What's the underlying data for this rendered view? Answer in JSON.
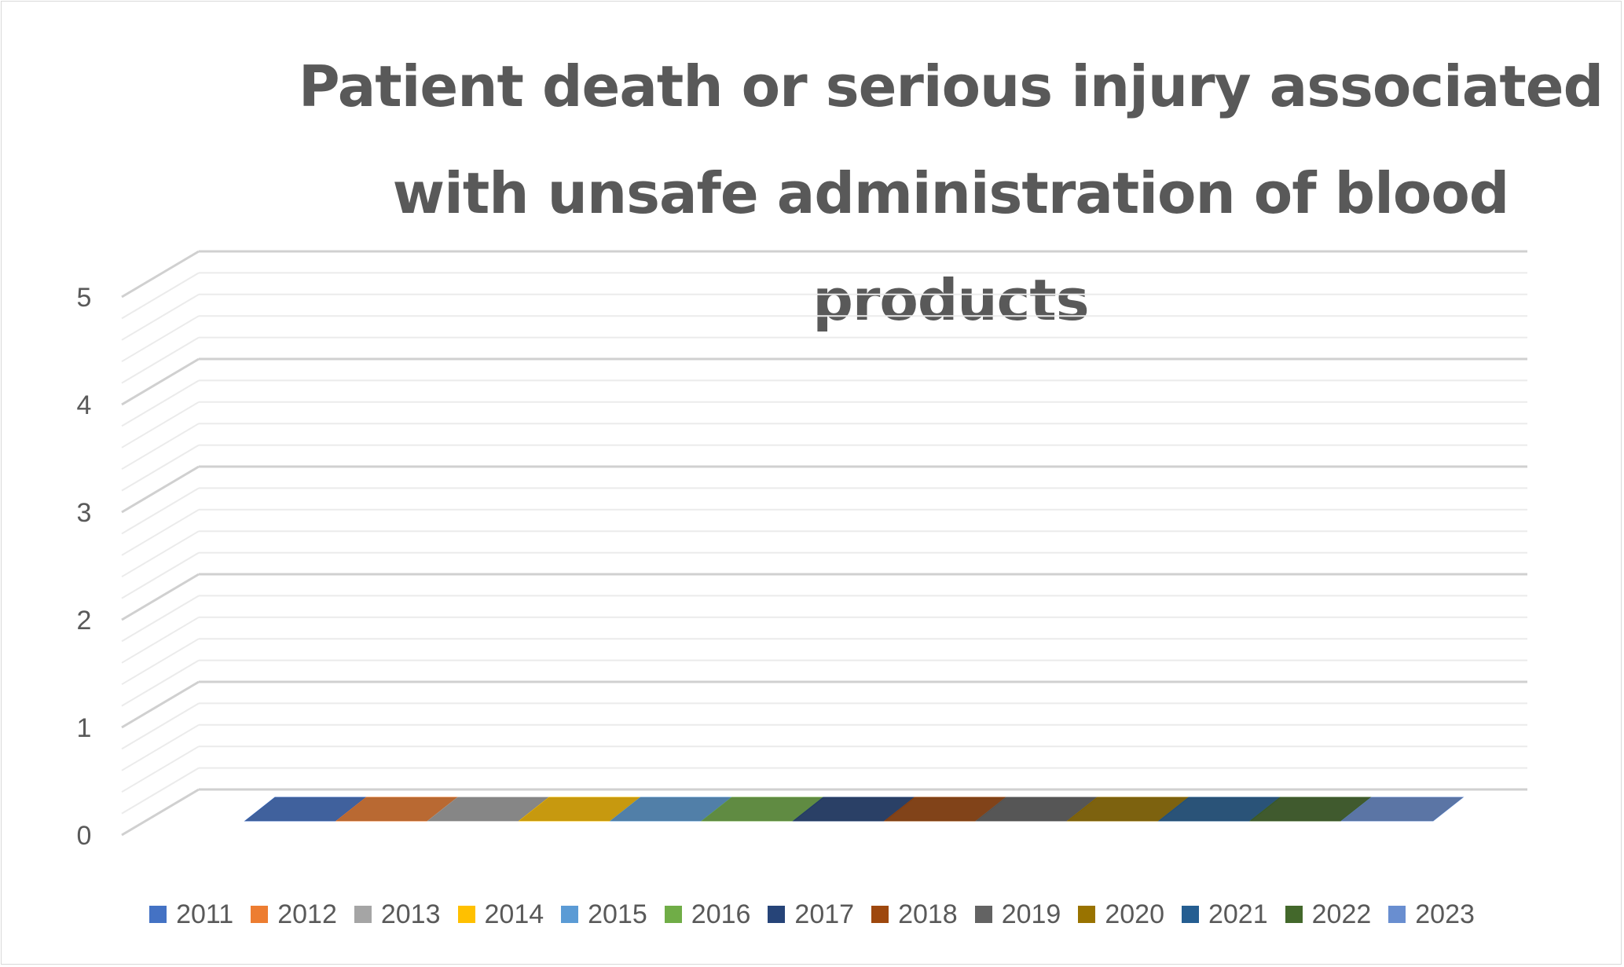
{
  "chart_data": {
    "type": "bar",
    "title": "Patient death or serious injury associated with unsafe administration of blood products",
    "xlabel": "",
    "ylabel": "",
    "ylim": [
      0,
      5
    ],
    "yticks": [
      "0",
      "1",
      "2",
      "3",
      "4",
      "5"
    ],
    "legend_position": "bottom",
    "grid": true,
    "style": "3d-column",
    "series": [
      {
        "name": "2011",
        "values": [
          0
        ],
        "color": "#4472c4"
      },
      {
        "name": "2012",
        "values": [
          0
        ],
        "color": "#ed7d31"
      },
      {
        "name": "2013",
        "values": [
          0
        ],
        "color": "#a5a5a5"
      },
      {
        "name": "2014",
        "values": [
          0
        ],
        "color": "#ffc000"
      },
      {
        "name": "2015",
        "values": [
          0
        ],
        "color": "#5b9bd5"
      },
      {
        "name": "2016",
        "values": [
          0
        ],
        "color": "#70ad47"
      },
      {
        "name": "2017",
        "values": [
          0
        ],
        "color": "#264478"
      },
      {
        "name": "2018",
        "values": [
          0
        ],
        "color": "#9e480e"
      },
      {
        "name": "2019",
        "values": [
          0
        ],
        "color": "#636363"
      },
      {
        "name": "2020",
        "values": [
          0
        ],
        "color": "#997300"
      },
      {
        "name": "2021",
        "values": [
          0
        ],
        "color": "#255e91"
      },
      {
        "name": "2022",
        "values": [
          0
        ],
        "color": "#43682b"
      },
      {
        "name": "2023",
        "values": [
          0
        ],
        "color": "#698ed0"
      }
    ]
  }
}
